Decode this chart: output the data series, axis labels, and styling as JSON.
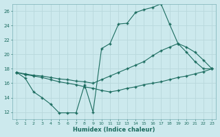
{
  "xlabel": "Humidex (Indice chaleur)",
  "bg_color": "#cce9ed",
  "grid_color": "#b8d8dc",
  "line_color": "#1a6b5e",
  "xlim": [
    -0.5,
    23.5
  ],
  "ylim": [
    11,
    27
  ],
  "xticks": [
    0,
    1,
    2,
    3,
    4,
    5,
    6,
    7,
    8,
    9,
    10,
    11,
    12,
    13,
    14,
    15,
    16,
    17,
    18,
    19,
    20,
    21,
    22,
    23
  ],
  "yticks": [
    12,
    14,
    16,
    18,
    20,
    22,
    24,
    26
  ],
  "line1_x": [
    0,
    1,
    2,
    3,
    4,
    5,
    6,
    7,
    8,
    9,
    10,
    11,
    12,
    13,
    14,
    15,
    16,
    17,
    18,
    19,
    20,
    21,
    22,
    23
  ],
  "line1_y": [
    17.5,
    16.7,
    14.8,
    14.0,
    13.1,
    11.9,
    11.9,
    11.9,
    15.8,
    12.0,
    20.8,
    21.5,
    24.2,
    24.3,
    25.8,
    26.2,
    26.5,
    27.0,
    24.2,
    21.5,
    20.3,
    19.0,
    18.0,
    18.0
  ],
  "line2_x": [
    0,
    1,
    2,
    3,
    4,
    5,
    6,
    7,
    8,
    9,
    10,
    11,
    12,
    13,
    14,
    15,
    16,
    17,
    18,
    19,
    20,
    21,
    22,
    23
  ],
  "line2_y": [
    17.5,
    17.3,
    17.1,
    17.0,
    16.8,
    16.6,
    16.5,
    16.3,
    16.2,
    16.0,
    16.5,
    17.0,
    17.5,
    18.0,
    18.5,
    19.0,
    19.8,
    20.5,
    21.0,
    21.5,
    21.0,
    20.3,
    19.2,
    18.0
  ],
  "line3_x": [
    0,
    1,
    2,
    3,
    4,
    5,
    6,
    7,
    8,
    9,
    10,
    11,
    12,
    13,
    14,
    15,
    16,
    17,
    18,
    19,
    20,
    21,
    22,
    23
  ],
  "line3_y": [
    17.5,
    17.2,
    17.0,
    16.8,
    16.5,
    16.2,
    16.0,
    15.8,
    15.5,
    15.3,
    15.0,
    14.8,
    15.0,
    15.3,
    15.5,
    15.8,
    16.0,
    16.2,
    16.5,
    16.8,
    17.0,
    17.3,
    17.6,
    18.0
  ]
}
